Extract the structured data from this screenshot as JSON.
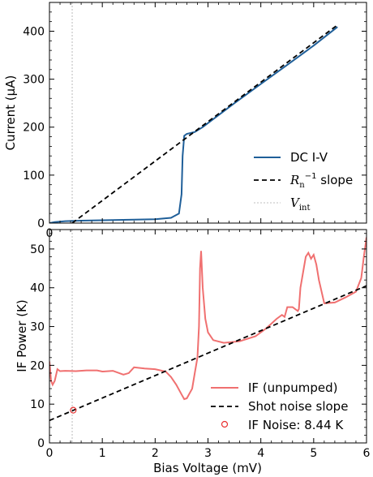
{
  "chart_data": [
    {
      "type": "line",
      "ylabel": "Current (μA)",
      "xlim": [
        0,
        6
      ],
      "ylim": [
        0,
        460
      ],
      "yticks": [
        0,
        100,
        200,
        300,
        400
      ],
      "xticks_visible": [
        "0"
      ],
      "colors": {
        "dc": "#1f5f99",
        "slope": "#000000",
        "vint": "#aaaaaa"
      },
      "series": [
        {
          "name": "DC I-V",
          "x": [
            0,
            0.1,
            0.3,
            0.6,
            1.0,
            1.5,
            2.0,
            2.3,
            2.45,
            2.5,
            2.52,
            2.55,
            2.6,
            2.75,
            2.9,
            3.5,
            4.0,
            4.5,
            5.0,
            5.45
          ],
          "y": [
            0,
            2,
            4,
            5,
            6,
            7,
            8,
            11,
            20,
            60,
            140,
            182,
            186,
            190,
            200,
            250,
            290,
            330,
            370,
            409
          ]
        },
        {
          "name": "R_n^{-1} slope",
          "x": [
            0.43,
            5.45
          ],
          "y": [
            0,
            413
          ]
        }
      ],
      "vline": {
        "name": "V_int",
        "x": 0.43
      },
      "legend": {
        "position": "lower-right",
        "entries": [
          "DC I-V",
          "slope",
          "vint"
        ],
        "slope_prefix": "R",
        "slope_sub": "n",
        "slope_sup": "−1",
        "slope_suffix": " slope",
        "vint_main": "V",
        "vint_sub": "int"
      }
    },
    {
      "type": "line",
      "xlabel": "Bias Voltage (mV)",
      "ylabel": "IF Power (K)",
      "xlim": [
        0,
        6
      ],
      "ylim": [
        0,
        55
      ],
      "xticks": [
        0,
        1,
        2,
        3,
        4,
        5,
        6
      ],
      "yticks": [
        0,
        10,
        20,
        30,
        40,
        50
      ],
      "colors": {
        "if": "#f07070",
        "shot": "#000000",
        "noise": "#e83030"
      },
      "series": [
        {
          "name": "IF (unpumped)",
          "x": [
            0,
            0.03,
            0.06,
            0.1,
            0.15,
            0.2,
            0.3,
            0.5,
            0.7,
            0.9,
            1.0,
            1.2,
            1.4,
            1.5,
            1.6,
            1.8,
            2.0,
            2.2,
            2.3,
            2.4,
            2.5,
            2.55,
            2.6,
            2.7,
            2.75,
            2.8,
            2.83,
            2.85,
            2.87,
            2.9,
            2.95,
            3.0,
            3.1,
            3.3,
            3.6,
            3.9,
            4.1,
            4.3,
            4.4,
            4.45,
            4.5,
            4.6,
            4.7,
            4.72,
            4.75,
            4.8,
            4.85,
            4.9,
            4.95,
            5.0,
            5.05,
            5.1,
            5.2,
            5.4,
            5.6,
            5.8,
            5.9,
            5.95,
            6.0
          ],
          "y": [
            21,
            16,
            15,
            16,
            19,
            18.5,
            18.6,
            18.5,
            18.7,
            18.7,
            18.4,
            18.6,
            17.6,
            18,
            19.5,
            19.2,
            19,
            18.4,
            17,
            15,
            12.5,
            11.3,
            11.5,
            14,
            18,
            22,
            30,
            45,
            49.5,
            40,
            32,
            28.5,
            26.5,
            25.8,
            26.2,
            27.5,
            29.5,
            32,
            33,
            32.5,
            35,
            35,
            34,
            34.5,
            40,
            44,
            48,
            49,
            47.5,
            48.5,
            46,
            42,
            36,
            36.2,
            37.5,
            39,
            42.5,
            48,
            53
          ]
        },
        {
          "name": "Shot noise slope",
          "x": [
            0,
            6
          ],
          "y": [
            5.8,
            40.5
          ]
        }
      ],
      "points": [
        {
          "name": "IF Noise: 8.44 K",
          "x": 0.45,
          "y": 8.44
        }
      ],
      "vline": {
        "x": 0.43
      },
      "legend": {
        "position": "lower-right",
        "entries": [
          "IF (unpumped)",
          "Shot noise slope",
          "IF Noise: 8.44 K"
        ]
      }
    }
  ]
}
